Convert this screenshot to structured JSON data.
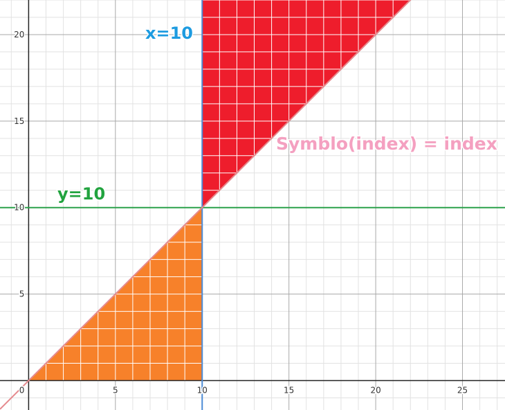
{
  "chart_data": {
    "type": "line",
    "title": "",
    "xlim": [
      -1.65,
      27.45
    ],
    "ylim": [
      -1.7,
      22
    ],
    "grid": true,
    "minor_grid": true,
    "x_ticks": [
      0,
      5,
      10,
      15,
      20,
      25
    ],
    "y_ticks": [
      5,
      10,
      15,
      20
    ],
    "origin_label": "0",
    "series": [
      {
        "label": "y=10",
        "kind": "horizontal",
        "y": 10,
        "color": "#2aa14a"
      },
      {
        "label": "x=10",
        "kind": "vertical",
        "x": 10,
        "color": "#4c8bd6"
      },
      {
        "label": "Symblo(index) = index",
        "kind": "line",
        "slope": 1,
        "intercept": 0,
        "color": "#e58a8e"
      }
    ],
    "regions": [
      {
        "name": "lower-triangle",
        "vertices": [
          [
            0,
            0
          ],
          [
            10,
            0
          ],
          [
            10,
            10
          ]
        ],
        "color": "#f7812a"
      },
      {
        "name": "upper-triangle",
        "vertices": [
          [
            10,
            10
          ],
          [
            10,
            22
          ],
          [
            22,
            22
          ]
        ],
        "color": "#ee1d2c"
      }
    ],
    "label_colors": {
      "x=10": "#1d9be0",
      "y=10": "#22a33f",
      "Symblo(index) = index": "#f4a0c0"
    }
  }
}
